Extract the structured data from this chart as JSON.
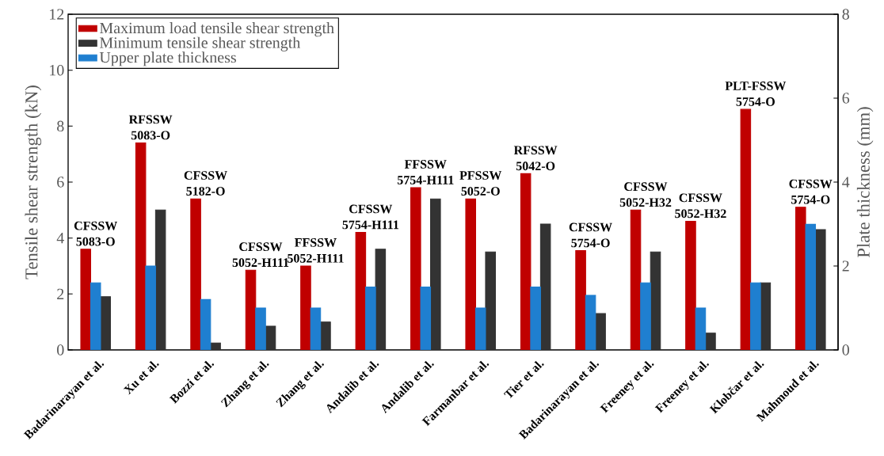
{
  "chart_data": {
    "type": "bar",
    "categories": [
      "Badarinarayan et al.",
      "Xu et al.",
      "Bozzi  et al.",
      "Zhang et al.",
      "Zhang et al.",
      "Andalib et al.",
      "Andalib et al.",
      "Farmanbar et al.",
      "Tier et al.",
      "Badarinarayan et al.",
      "Freeney et al.",
      "Freeney et al.",
      "Klobčar et al.",
      "Mahmoud et al."
    ],
    "series": [
      {
        "name": "Maximum load tensile shear strength",
        "color": "#c00000",
        "values": [
          3.6,
          7.4,
          5.4,
          2.85,
          3.0,
          4.2,
          5.8,
          5.4,
          6.3,
          3.55,
          5.0,
          4.6,
          8.6,
          5.1
        ]
      },
      {
        "name": "Minimum tensile shear strength",
        "color": "#333333",
        "values": [
          1.9,
          5.0,
          0.25,
          0.85,
          1.0,
          3.6,
          5.4,
          3.5,
          4.5,
          1.3,
          3.5,
          0.6,
          2.4,
          4.3
        ]
      },
      {
        "name": "Upper plate thickness",
        "color": "#1f7fd0",
        "axis": "y2",
        "values": [
          1.6,
          2.0,
          1.2,
          1.0,
          1.0,
          1.5,
          1.5,
          1.0,
          1.5,
          1.3,
          1.6,
          1.0,
          1.6,
          3.0
        ]
      }
    ],
    "ylabel": "Tensile shear strength (kN)",
    "y2label": "Plate thickness (mm)",
    "ylim": [
      0,
      12
    ],
    "yticks": [
      0,
      2,
      4,
      6,
      8,
      10,
      12
    ],
    "y2lim": [
      0,
      8
    ],
    "y2ticks": [
      0,
      2,
      4,
      6,
      8
    ],
    "legend": "top left",
    "annotations": [
      "CFSSW 5083-O",
      "RFSSW 5083-O",
      "CFSSW 5182-O",
      "CFSSW 5052-H111",
      "FFSSW 5052-H111",
      "CFSSW 5754-H111",
      "FFSSW 5754-H111",
      "PFSSW 5052-O",
      "RFSSW 5042-O",
      "CFSSW 5754-O",
      "CFSSW 5052-H32",
      "CFSSW 5052-H32",
      "PLT-FSSW 5754-O",
      "CFSSW 5754-O"
    ]
  }
}
